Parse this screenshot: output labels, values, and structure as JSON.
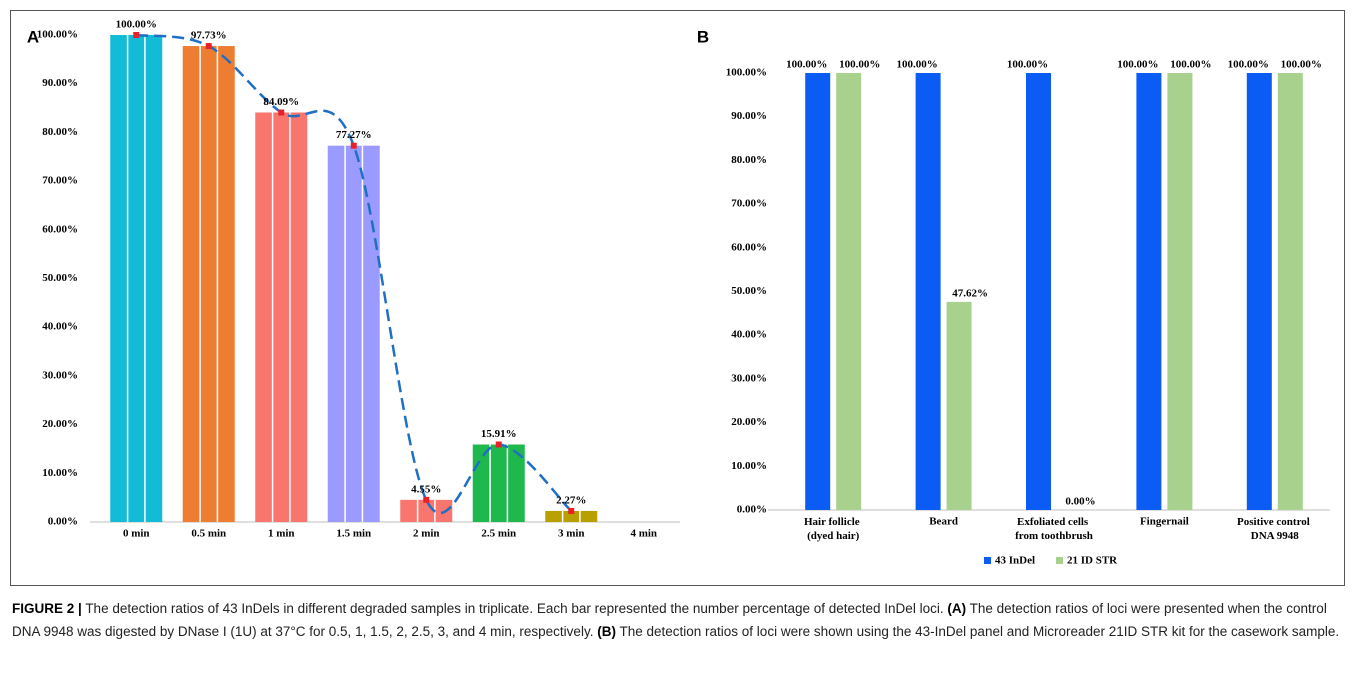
{
  "chart_data": [
    {
      "type": "bar",
      "panel": "A",
      "categories": [
        "0 min",
        "0.5 min",
        "1 min",
        "1.5 min",
        "2 min",
        "2.5 min",
        "3 min",
        "4 min"
      ],
      "values": [
        100,
        97.73,
        84.09,
        77.27,
        4.55,
        15.91,
        2.27,
        null
      ],
      "value_labels": [
        "100.00%",
        "97.73%",
        "84.09%",
        "77.27%",
        "4.55%",
        "15.91%",
        "2.27%",
        null
      ],
      "colors": [
        "#12bcd6",
        "#ed7d31",
        "#f8766d",
        "#9b9bff",
        "#f8766d",
        "#1fb84c",
        "#b8a000",
        null
      ],
      "line": {
        "color": "#1f6fc5",
        "marker_color": "#e8202a",
        "dashed": true
      },
      "ylim": [
        0,
        100
      ],
      "yticks": [
        {
          "value": 0,
          "label": "0.00%"
        },
        {
          "value": 10,
          "label": "10.00%"
        },
        {
          "value": 20,
          "label": "20.00%"
        },
        {
          "value": 30,
          "label": "30.00%"
        },
        {
          "value": 40,
          "label": "40.00%"
        },
        {
          "value": 50,
          "label": "50.00%"
        },
        {
          "value": 60,
          "label": "60.00%"
        },
        {
          "value": 70,
          "label": "70.00%"
        },
        {
          "value": 80,
          "label": "80.00%"
        },
        {
          "value": 90,
          "label": "90.00%"
        },
        {
          "value": 100,
          "label": "100.00%"
        }
      ]
    },
    {
      "type": "bar",
      "panel": "B",
      "categories": [
        "Hair follicle (dyed hair)",
        "Beard",
        "Exfoliated cells from toothbrush",
        "Fingernail",
        "Positive control DNA 9948"
      ],
      "series": [
        {
          "name": "43 InDel",
          "color": "#0a5cf5",
          "values": [
            100,
            100,
            100,
            100,
            100
          ],
          "value_labels": [
            "100.00%",
            "100.00%",
            "100.00%",
            "100.00%",
            "100.00%"
          ]
        },
        {
          "name": "21 ID STR",
          "color": "#a9d18e",
          "values": [
            100,
            47.62,
            0,
            100,
            100
          ],
          "value_labels": [
            "100.00%",
            "47.62%",
            "0.00%",
            "100.00%",
            "100.00%"
          ]
        }
      ],
      "ylim": [
        0,
        100
      ],
      "yticks": [
        {
          "value": 0,
          "label": "0.00%"
        },
        {
          "value": 10,
          "label": "10.00%"
        },
        {
          "value": 20,
          "label": "20.00%"
        },
        {
          "value": 30,
          "label": "30.00%"
        },
        {
          "value": 40,
          "label": "40.00%"
        },
        {
          "value": 50,
          "label": "50.00%"
        },
        {
          "value": 60,
          "label": "60.00%"
        },
        {
          "value": 70,
          "label": "70.00%"
        },
        {
          "value": 80,
          "label": "80.00%"
        },
        {
          "value": 90,
          "label": "90.00%"
        },
        {
          "value": 100,
          "label": "100.00%"
        }
      ],
      "legend": "bottom"
    }
  ],
  "caption": {
    "label": "FIGURE 2 |",
    "text1": "The detection ratios of 43 InDels in different degraded samples in triplicate. Each bar represented the number percentage of detected InDel loci.",
    "a": "(A)",
    "text2": "The detection ratios of loci were presented when the control DNA 9948 was digested by DNase I (1U) at 37°C for 0.5, 1, 1.5, 2, 2.5, 3, and 4 min, respectively.",
    "b": "(B)",
    "text3": "The detection ratios of loci were shown using the 43-InDel panel and Microreader 21ID STR kit for the casework sample."
  }
}
